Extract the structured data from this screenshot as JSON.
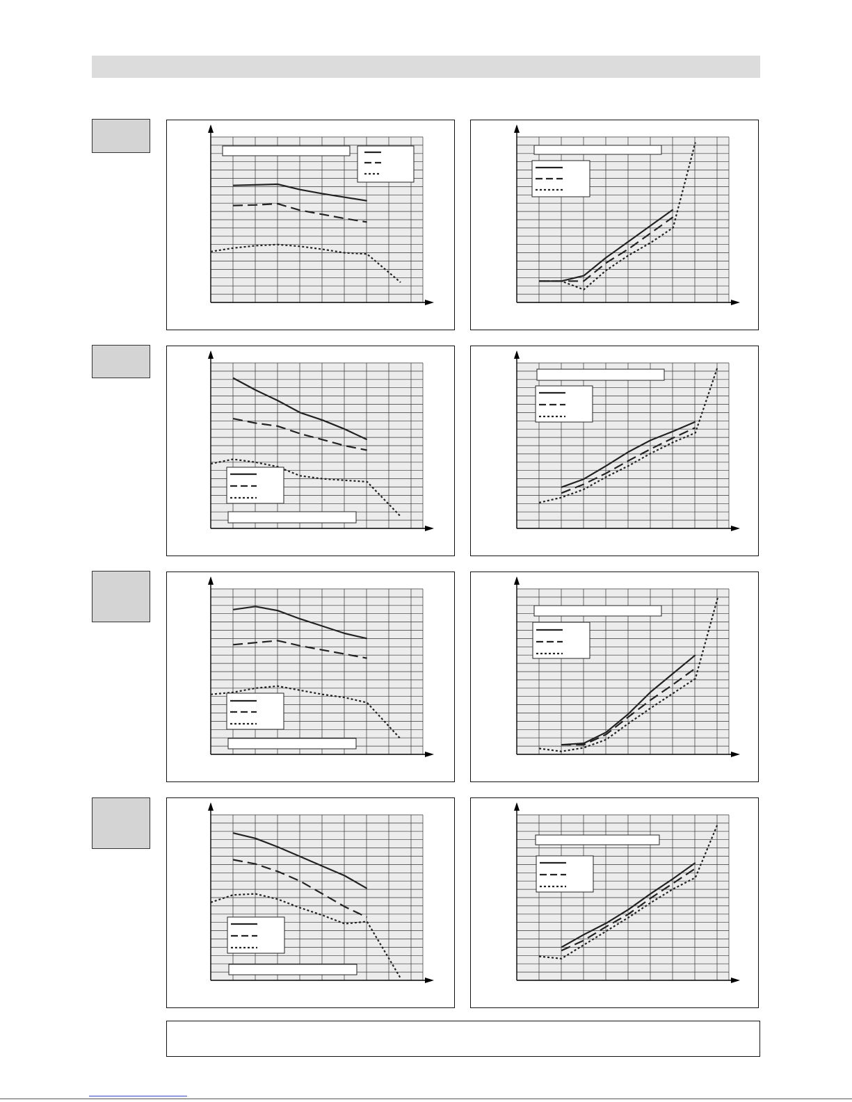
{
  "colors": {
    "line": "#222222",
    "plot_bg": "#ececec",
    "grid": "#333333",
    "label_fill": "#d4d4d4",
    "header_fill": "#dcdcdc"
  },
  "chart_data": [
    {
      "type": "line",
      "series": [
        {
          "style": "solid",
          "values": [
            [
              0,
              9.9
            ],
            [
              1,
              9.95
            ],
            [
              2,
              10
            ],
            [
              3,
              9.55
            ],
            [
              4,
              9.2
            ],
            [
              5,
              8.9
            ],
            [
              6,
              8.6
            ]
          ]
        },
        {
          "style": "dashed",
          "values": [
            [
              0,
              8.2
            ],
            [
              1,
              8.25
            ],
            [
              2,
              8.35
            ],
            [
              3,
              7.8
            ],
            [
              4,
              7.45
            ],
            [
              5,
              7.1
            ],
            [
              6,
              6.8
            ]
          ]
        },
        {
          "style": "dotted",
          "values": [
            [
              -1,
              4.3
            ],
            [
              0,
              4.6
            ],
            [
              1,
              4.8
            ],
            [
              2,
              4.9
            ],
            [
              3,
              4.75
            ],
            [
              4,
              4.5
            ],
            [
              5,
              4.2
            ],
            [
              6,
              4.1
            ],
            [
              7.5,
              1.7
            ]
          ]
        }
      ]
    },
    {
      "type": "line",
      "series": [
        {
          "style": "solid",
          "values": [
            [
              -1,
              2
            ],
            [
              0,
              2
            ],
            [
              1,
              2.5
            ],
            [
              2,
              4.2
            ],
            [
              3,
              5.7
            ],
            [
              4,
              7.2
            ],
            [
              5,
              8.7
            ]
          ]
        },
        {
          "style": "dashed",
          "values": [
            [
              -1,
              2
            ],
            [
              0,
              2
            ],
            [
              1,
              2
            ],
            [
              2,
              3.7
            ],
            [
              3,
              5
            ],
            [
              4,
              6.5
            ],
            [
              5,
              8
            ]
          ]
        },
        {
          "style": "dotted",
          "values": [
            [
              -1,
              2
            ],
            [
              0,
              2
            ],
            [
              1,
              1.2
            ],
            [
              2,
              3
            ],
            [
              3,
              4.4
            ],
            [
              4,
              5.6
            ],
            [
              5,
              7
            ],
            [
              6,
              15
            ]
          ]
        }
      ]
    },
    {
      "type": "line",
      "series": [
        {
          "style": "solid",
          "values": [
            [
              0,
              10
            ],
            [
              1,
              9.2
            ],
            [
              2,
              8.5
            ],
            [
              3,
              7.7
            ],
            [
              4,
              7.2
            ],
            [
              5,
              6.6
            ],
            [
              6,
              5.9
            ]
          ]
        },
        {
          "style": "dashed",
          "values": [
            [
              0,
              7.3
            ],
            [
              1,
              7
            ],
            [
              2,
              6.8
            ],
            [
              3,
              6.3
            ],
            [
              4,
              5.9
            ],
            [
              5,
              5.5
            ],
            [
              6,
              5.2
            ]
          ]
        },
        {
          "style": "dotted",
          "values": [
            [
              -1,
              4.3
            ],
            [
              0,
              4.6
            ],
            [
              1,
              4.4
            ],
            [
              2,
              4.1
            ],
            [
              3,
              3.5
            ],
            [
              4,
              3.3
            ],
            [
              5,
              3.2
            ],
            [
              6,
              3.1
            ],
            [
              7.5,
              0.8
            ]
          ]
        }
      ]
    },
    {
      "type": "line",
      "series": [
        {
          "style": "solid",
          "values": [
            [
              0,
              5.6
            ],
            [
              1,
              6.7
            ],
            [
              2,
              8.5
            ],
            [
              3,
              10.4
            ],
            [
              4,
              12
            ],
            [
              5,
              13.2
            ],
            [
              6,
              14.5
            ]
          ]
        },
        {
          "style": "dashed",
          "values": [
            [
              0,
              4.8
            ],
            [
              1,
              6
            ],
            [
              2,
              7.5
            ],
            [
              3,
              9.2
            ],
            [
              4,
              10.8
            ],
            [
              5,
              12.3
            ],
            [
              6,
              13.7
            ]
          ]
        },
        {
          "style": "dotted",
          "values": [
            [
              -1,
              3.5
            ],
            [
              0,
              4.2
            ],
            [
              1,
              5.3
            ],
            [
              2,
              7
            ],
            [
              3,
              8.5
            ],
            [
              4,
              10.2
            ],
            [
              5,
              11.7
            ],
            [
              6,
              13
            ],
            [
              7,
              22
            ]
          ]
        }
      ]
    },
    {
      "type": "line",
      "series": [
        {
          "style": "solid",
          "values": [
            [
              0,
              14
            ],
            [
              1,
              14.3
            ],
            [
              2,
              13.9
            ],
            [
              3,
              13.1
            ],
            [
              4,
              12.4
            ],
            [
              5,
              11.7
            ],
            [
              6,
              11.2
            ]
          ]
        },
        {
          "style": "dashed",
          "values": [
            [
              0,
              10.6
            ],
            [
              1,
              10.8
            ],
            [
              2,
              11
            ],
            [
              3,
              10.5
            ],
            [
              4,
              10.1
            ],
            [
              5,
              9.7
            ],
            [
              6,
              9.3
            ]
          ]
        },
        {
          "style": "dotted",
          "values": [
            [
              -1,
              5.8
            ],
            [
              0,
              6
            ],
            [
              1,
              6.4
            ],
            [
              2,
              6.6
            ],
            [
              3,
              6.2
            ],
            [
              4,
              5.8
            ],
            [
              5,
              5.5
            ],
            [
              6,
              5
            ],
            [
              7.5,
              1.5
            ]
          ]
        }
      ]
    },
    {
      "type": "line",
      "series": [
        {
          "style": "solid",
          "values": [
            [
              0,
              1.3
            ],
            [
              1,
              1.5
            ],
            [
              2,
              3
            ],
            [
              3,
              5.5
            ],
            [
              4,
              8.5
            ],
            [
              5,
              11
            ],
            [
              6,
              13.5
            ]
          ]
        },
        {
          "style": "dashed",
          "values": [
            [
              0,
              1.3
            ],
            [
              1,
              1.3
            ],
            [
              2,
              2.7
            ],
            [
              3,
              5.1
            ],
            [
              4,
              7.4
            ],
            [
              5,
              9.5
            ],
            [
              6,
              11.7
            ]
          ]
        },
        {
          "style": "dotted",
          "values": [
            [
              -1,
              0.8
            ],
            [
              0,
              0.4
            ],
            [
              1,
              0.9
            ],
            [
              2,
              2
            ],
            [
              3,
              4.2
            ],
            [
              4,
              6.3
            ],
            [
              5,
              8.3
            ],
            [
              6,
              10.3
            ],
            [
              7,
              21.3
            ]
          ]
        }
      ]
    },
    {
      "type": "line",
      "series": [
        {
          "style": "solid",
          "values": [
            [
              0,
              13.8
            ],
            [
              1,
              13.3
            ],
            [
              2,
              12.5
            ],
            [
              3,
              11.6
            ],
            [
              4,
              10.7
            ],
            [
              5,
              9.8
            ],
            [
              6,
              8.6
            ]
          ]
        },
        {
          "style": "dashed",
          "values": [
            [
              0,
              11.3
            ],
            [
              1,
              10.9
            ],
            [
              2,
              10.2
            ],
            [
              3,
              9.3
            ],
            [
              4,
              8.1
            ],
            [
              5,
              6.9
            ],
            [
              6,
              5.9
            ]
          ]
        },
        {
          "style": "dotted",
          "values": [
            [
              -1,
              7.3
            ],
            [
              0,
              8
            ],
            [
              1,
              8.1
            ],
            [
              2,
              7.6
            ],
            [
              3,
              6.8
            ],
            [
              4,
              6.1
            ],
            [
              5,
              5.3
            ],
            [
              6,
              5.5
            ],
            [
              7.5,
              0.2
            ]
          ]
        }
      ]
    },
    {
      "type": "line",
      "series": [
        {
          "style": "solid",
          "values": [
            [
              0,
              2.9
            ],
            [
              1,
              4
            ],
            [
              2,
              5
            ],
            [
              3,
              6.2
            ],
            [
              4,
              7.6
            ],
            [
              5,
              8.9
            ],
            [
              6,
              10.3
            ]
          ]
        },
        {
          "style": "dashed",
          "values": [
            [
              0,
              2.6
            ],
            [
              1,
              3.5
            ],
            [
              2,
              4.7
            ],
            [
              3,
              5.8
            ],
            [
              4,
              7.2
            ],
            [
              5,
              8.5
            ],
            [
              6,
              9.8
            ]
          ]
        },
        {
          "style": "dotted",
          "values": [
            [
              -1,
              2.1
            ],
            [
              0,
              1.9
            ],
            [
              1,
              3.1
            ],
            [
              2,
              4.3
            ],
            [
              3,
              5.5
            ],
            [
              4,
              6.8
            ],
            [
              5,
              8
            ],
            [
              6,
              9
            ],
            [
              7,
              13.7
            ]
          ]
        }
      ]
    }
  ]
}
